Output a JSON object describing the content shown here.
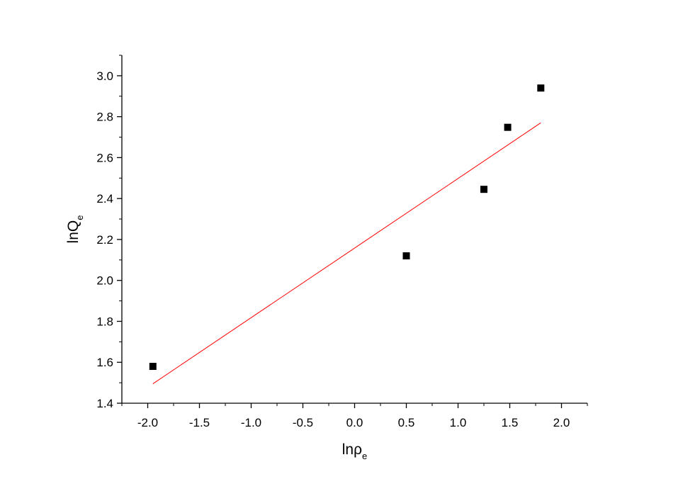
{
  "chart_data": {
    "type": "scatter",
    "xlabel": {
      "main": "lnρ",
      "sub": "e"
    },
    "ylabel": {
      "main": "lnQ",
      "sub": "e"
    },
    "xlim": [
      -2.25,
      2.25
    ],
    "ylim": [
      1.4,
      3.1
    ],
    "x_ticks": [
      -2.0,
      -1.5,
      -1.0,
      -0.5,
      0.0,
      0.5,
      1.0,
      1.5,
      2.0
    ],
    "x_tick_labels": [
      "-2.0",
      "-1.5",
      "-1.0",
      "-0.5",
      "0.0",
      "0.5",
      "1.0",
      "1.5",
      "2.0"
    ],
    "y_ticks": [
      1.4,
      1.6,
      1.8,
      2.0,
      2.2,
      2.4,
      2.6,
      2.8,
      3.0
    ],
    "y_tick_labels": [
      "1.4",
      "1.6",
      "1.8",
      "2.0",
      "2.2",
      "2.4",
      "2.6",
      "2.8",
      "3.0"
    ],
    "grid": false,
    "series": [
      {
        "type": "scatter",
        "marker": "square",
        "color": "#000000",
        "x": [
          -1.95,
          0.5,
          1.25,
          1.48,
          1.8
        ],
        "y": [
          1.58,
          2.12,
          2.445,
          2.748,
          2.94
        ]
      },
      {
        "type": "line",
        "color": "#ff0000",
        "x": [
          -1.95,
          1.8
        ],
        "y": [
          1.495,
          2.77
        ]
      }
    ]
  }
}
